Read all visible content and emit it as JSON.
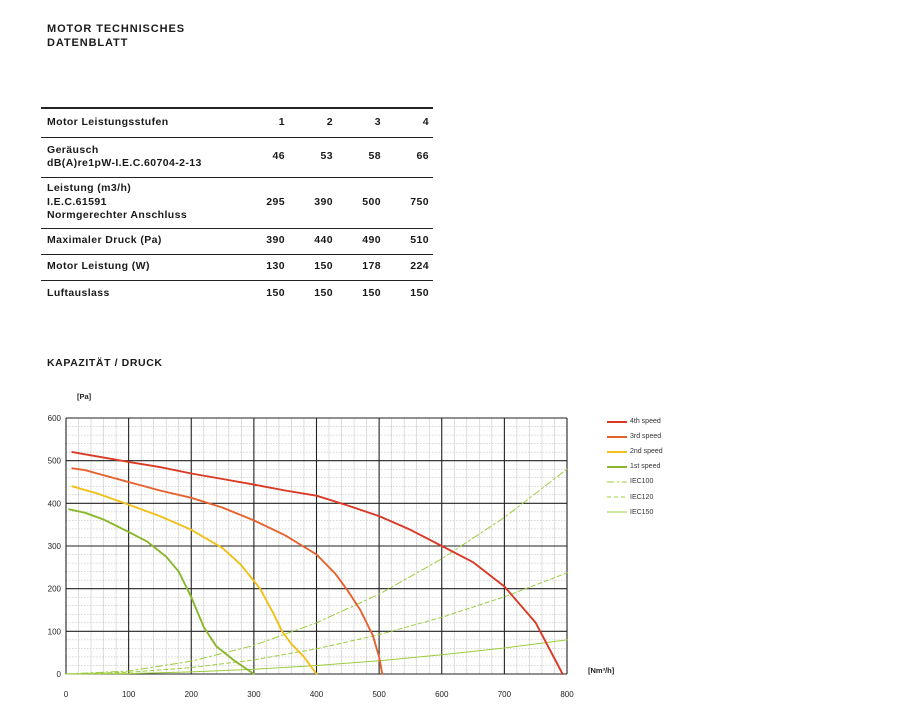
{
  "header": {
    "title_line1": "MOTOR TECHNISCHES",
    "title_line2": "DATENBLATT"
  },
  "table": {
    "columns": [
      "1",
      "2",
      "3",
      "4"
    ],
    "header_label": "Motor Leistungsstufen",
    "rows": [
      {
        "label_lines": [
          "Geräusch",
          "dB(A)re1pW-I.E.C.60704-2-13"
        ],
        "values": [
          "46",
          "53",
          "58",
          "66"
        ]
      },
      {
        "label_lines": [
          "Leistung  (m3/h)",
          "I.E.C.61591",
          "Normgerechter Anschluss"
        ],
        "values": [
          "295",
          "390",
          "500",
          "750"
        ]
      },
      {
        "label_lines": [
          "Maximaler Druck (Pa)"
        ],
        "values": [
          "390",
          "440",
          "490",
          "510"
        ]
      },
      {
        "label_lines": [
          "Motor Leistung (W)"
        ],
        "values": [
          "130",
          "150",
          "178",
          "224"
        ]
      },
      {
        "label_lines": [
          "Luftauslass"
        ],
        "values": [
          "150",
          "150",
          "150",
          "150"
        ]
      }
    ]
  },
  "section_title": "KAPAZITÄT / DRUCK",
  "chart_data": {
    "type": "line",
    "ylabel": "[Pa]",
    "xlabel": "[Nm³/h]",
    "xlim": [
      0,
      800
    ],
    "ylim": [
      0,
      600
    ],
    "x_ticks": [
      "0",
      "100",
      "200",
      "300",
      "400",
      "500",
      "600",
      "700",
      "800"
    ],
    "y_ticks": [
      "0",
      "100",
      "200",
      "300",
      "400",
      "500",
      "600"
    ],
    "grid": true,
    "legend_position": "right",
    "series": [
      {
        "name": "4th speed",
        "color": "#d93a26",
        "style": "solid",
        "points": [
          [
            10,
            520
          ],
          [
            50,
            510
          ],
          [
            100,
            497
          ],
          [
            150,
            485
          ],
          [
            200,
            470
          ],
          [
            250,
            457
          ],
          [
            300,
            444
          ],
          [
            350,
            430
          ],
          [
            400,
            418
          ],
          [
            450,
            395
          ],
          [
            500,
            370
          ],
          [
            550,
            338
          ],
          [
            600,
            300
          ],
          [
            650,
            262
          ],
          [
            700,
            205
          ],
          [
            750,
            120
          ],
          [
            793,
            0
          ]
        ]
      },
      {
        "name": "3rd speed",
        "color": "#e5622f",
        "style": "solid",
        "points": [
          [
            10,
            482
          ],
          [
            30,
            478
          ],
          [
            50,
            470
          ],
          [
            100,
            450
          ],
          [
            150,
            430
          ],
          [
            200,
            413
          ],
          [
            250,
            390
          ],
          [
            300,
            360
          ],
          [
            350,
            325
          ],
          [
            400,
            280
          ],
          [
            430,
            235
          ],
          [
            450,
            195
          ],
          [
            470,
            150
          ],
          [
            490,
            90
          ],
          [
            500,
            40
          ],
          [
            505,
            0
          ]
        ]
      },
      {
        "name": "2nd speed",
        "color": "#f2c01a",
        "style": "solid",
        "points": [
          [
            10,
            440
          ],
          [
            50,
            423
          ],
          [
            100,
            397
          ],
          [
            150,
            370
          ],
          [
            200,
            338
          ],
          [
            250,
            295
          ],
          [
            280,
            255
          ],
          [
            310,
            200
          ],
          [
            330,
            145
          ],
          [
            345,
            100
          ],
          [
            360,
            70
          ],
          [
            380,
            40
          ],
          [
            400,
            0
          ]
        ]
      },
      {
        "name": "1st speed",
        "color": "#8ab82c",
        "style": "solid",
        "points": [
          [
            5,
            386
          ],
          [
            30,
            378
          ],
          [
            60,
            362
          ],
          [
            100,
            333
          ],
          [
            130,
            310
          ],
          [
            160,
            275
          ],
          [
            180,
            240
          ],
          [
            200,
            180
          ],
          [
            220,
            110
          ],
          [
            240,
            65
          ],
          [
            270,
            30
          ],
          [
            300,
            0
          ]
        ]
      },
      {
        "name": "IEC100",
        "color": "#9ccc3c",
        "style": "dashdot",
        "points": [
          [
            0,
            0
          ],
          [
            100,
            7
          ],
          [
            200,
            30
          ],
          [
            300,
            67
          ],
          [
            400,
            120
          ],
          [
            500,
            187
          ],
          [
            600,
            270
          ],
          [
            700,
            367
          ],
          [
            800,
            480
          ]
        ]
      },
      {
        "name": "IEC120",
        "color": "#9ccc3c",
        "style": "dashed",
        "points": [
          [
            0,
            0
          ],
          [
            100,
            4
          ],
          [
            200,
            15
          ],
          [
            300,
            33
          ],
          [
            400,
            59
          ],
          [
            500,
            92
          ],
          [
            600,
            133
          ],
          [
            700,
            181
          ],
          [
            800,
            237
          ]
        ]
      },
      {
        "name": "IEC150",
        "color": "#9ccc3c",
        "style": "solid-thin",
        "points": [
          [
            0,
            0
          ],
          [
            100,
            1
          ],
          [
            200,
            5
          ],
          [
            300,
            11
          ],
          [
            400,
            20
          ],
          [
            500,
            31
          ],
          [
            600,
            45
          ],
          [
            700,
            61
          ],
          [
            800,
            80
          ]
        ]
      }
    ]
  }
}
